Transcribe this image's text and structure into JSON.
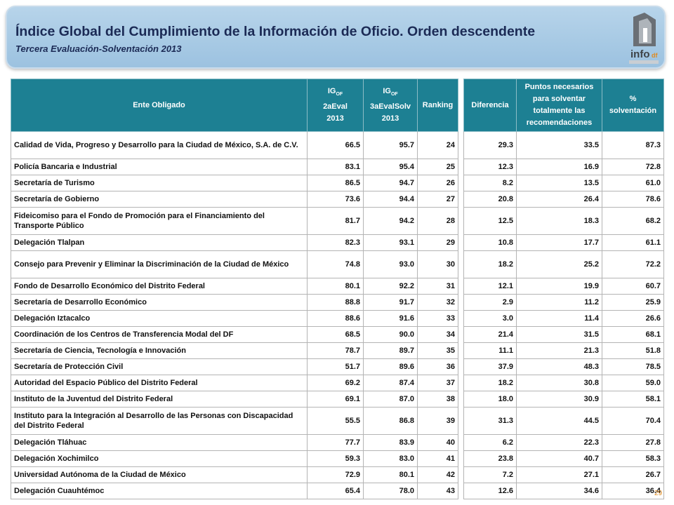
{
  "header": {
    "title": "Índice Global del Cumplimiento de la Información de Oficio. Orden descendente",
    "subtitle": "Tercera Evaluación-Solventación 2013",
    "logo": {
      "text": "info",
      "suffix": "df"
    }
  },
  "table": {
    "columns": [
      {
        "lines": [
          "Ente Obligado"
        ]
      },
      {
        "main": "IG",
        "sub": "OF",
        "lines": [
          "2aEval",
          "2013"
        ]
      },
      {
        "main": "IG",
        "sub": "OF",
        "lines": [
          "3aEvalSolv",
          "2013"
        ]
      },
      {
        "lines": [
          "Ranking"
        ]
      },
      {
        "lines": [
          "Diferencia"
        ]
      },
      {
        "lines": [
          "Puntos necesarios para solventar totalmente las recomendaciones"
        ]
      },
      {
        "lines": [
          "% solventación"
        ]
      }
    ],
    "rows": [
      [
        "Calidad de Vida, Progreso y Desarrollo para la Ciudad de México, S.A. de C.V.",
        "66.5",
        "95.7",
        "24",
        "29.3",
        "33.5",
        "87.3"
      ],
      [
        "Policía Bancaria e Industrial",
        "83.1",
        "95.4",
        "25",
        "12.3",
        "16.9",
        "72.8"
      ],
      [
        "Secretaría de Turismo",
        "86.5",
        "94.7",
        "26",
        "8.2",
        "13.5",
        "61.0"
      ],
      [
        "Secretaría de Gobierno",
        "73.6",
        "94.4",
        "27",
        "20.8",
        "26.4",
        "78.6"
      ],
      [
        "Fideicomiso para el Fondo de Promoción para el Financiamiento del Transporte Público",
        "81.7",
        "94.2",
        "28",
        "12.5",
        "18.3",
        "68.2"
      ],
      [
        "Delegación Tlalpan",
        "82.3",
        "93.1",
        "29",
        "10.8",
        "17.7",
        "61.1"
      ],
      [
        "Consejo para Prevenir y Eliminar la Discriminación de la Ciudad de México",
        "74.8",
        "93.0",
        "30",
        "18.2",
        "25.2",
        "72.2"
      ],
      [
        "Fondo de Desarrollo Económico del Distrito Federal",
        "80.1",
        "92.2",
        "31",
        "12.1",
        "19.9",
        "60.7"
      ],
      [
        "Secretaría de Desarrollo Económico",
        "88.8",
        "91.7",
        "32",
        "2.9",
        "11.2",
        "25.9"
      ],
      [
        "Delegación Iztacalco",
        "88.6",
        "91.6",
        "33",
        "3.0",
        "11.4",
        "26.6"
      ],
      [
        "Coordinación de los Centros de Transferencia Modal del DF",
        "68.5",
        "90.0",
        "34",
        "21.4",
        "31.5",
        "68.1"
      ],
      [
        "Secretaría de Ciencia, Tecnología e Innovación",
        "78.7",
        "89.7",
        "35",
        "11.1",
        "21.3",
        "51.8"
      ],
      [
        "Secretaría de Protección Civil",
        "51.7",
        "89.6",
        "36",
        "37.9",
        "48.3",
        "78.5"
      ],
      [
        "Autoridad del Espacio Público del Distrito Federal",
        "69.2",
        "87.4",
        "37",
        "18.2",
        "30.8",
        "59.0"
      ],
      [
        "Instituto de la Juventud del Distrito Federal",
        "69.1",
        "87.0",
        "38",
        "18.0",
        "30.9",
        "58.1"
      ],
      [
        "Instituto para la Integración al Desarrollo de las Personas con Discapacidad del Distrito Federal",
        "55.5",
        "86.8",
        "39",
        "31.3",
        "44.5",
        "70.4"
      ],
      [
        "Delegación Tláhuac",
        "77.7",
        "83.9",
        "40",
        "6.2",
        "22.3",
        "27.8"
      ],
      [
        "Delegación Xochimilco",
        "59.3",
        "83.0",
        "41",
        "23.8",
        "40.7",
        "58.3"
      ],
      [
        "Universidad Autónoma de la Ciudad de México",
        "72.9",
        "80.1",
        "42",
        "7.2",
        "27.1",
        "26.7"
      ],
      [
        "Delegación Cuauhtémoc",
        "65.4",
        "78.0",
        "43",
        "12.6",
        "34.6",
        "36.4"
      ]
    ]
  },
  "page_number": "29"
}
